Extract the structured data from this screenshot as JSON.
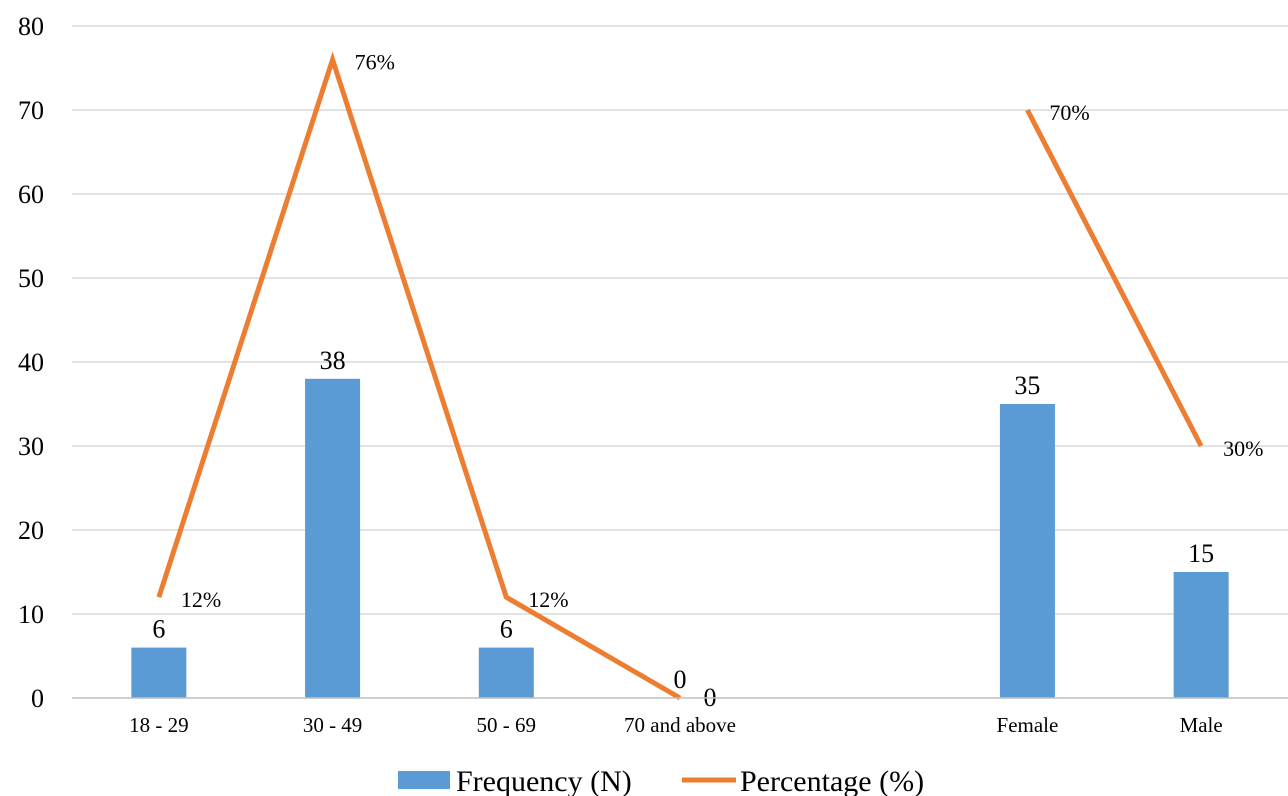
{
  "chart_data": {
    "type": "bar",
    "categories": [
      "18 - 29",
      "30 - 49",
      "50 - 69",
      "70 and above",
      "",
      "Female",
      "Male"
    ],
    "ylim": [
      0,
      80
    ],
    "yticks": [
      "0",
      "10",
      "20",
      "30",
      "40",
      "50",
      "60",
      "70",
      "80"
    ],
    "grid": true,
    "legend_position": "bottom",
    "series": [
      {
        "name": "Frequency (N)",
        "kind": "bar",
        "color": "#5b9bd5",
        "values": [
          6,
          38,
          6,
          0,
          null,
          35,
          15
        ],
        "labels": [
          "6",
          "38",
          "6",
          "0",
          "",
          "35",
          "15"
        ]
      },
      {
        "name": "Percentage (%)",
        "kind": "line",
        "color": "#ed7d31",
        "values": [
          12,
          76,
          12,
          0,
          null,
          70,
          30
        ],
        "labels": [
          "12%",
          "76%",
          "12%",
          "0",
          "",
          "70%",
          "30%"
        ]
      }
    ]
  }
}
